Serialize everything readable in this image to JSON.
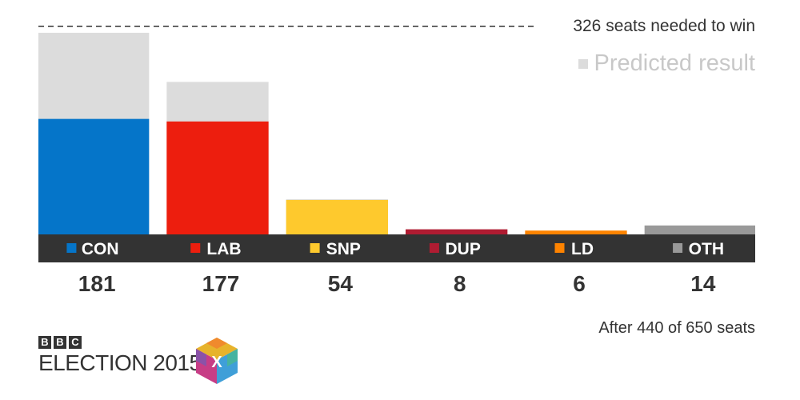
{
  "chart_data": {
    "type": "bar",
    "categories": [
      "CON",
      "LAB",
      "SNP",
      "DUP",
      "LD",
      "OTH"
    ],
    "series": [
      {
        "name": "",
        "values": [
          181,
          177,
          54,
          8,
          6,
          14
        ]
      },
      {
        "name": "Predicted result",
        "values": [
          316,
          239,
          55,
          null,
          null,
          null
        ]
      }
    ],
    "category_colors": [
      "#0575c9",
      "#ed1e0e",
      "#fec92d",
      "#b01c32",
      "#fe8300",
      "#999999"
    ],
    "predicted_color": "#dcdcdc",
    "majority_line": {
      "value": 326,
      "label": "326 seats needed to win"
    },
    "legend": {
      "label": "Predicted result",
      "position": "top-right"
    },
    "ylim": [
      0,
      330
    ],
    "grid": false,
    "footnote": "After 440 of 650 seats"
  },
  "logo": {
    "letters": [
      "B",
      "B",
      "C"
    ],
    "text": "ELECTION 2015",
    "mark": "X"
  },
  "colors": {
    "label_bar": "#333333",
    "text": "#333333",
    "muted_text": "#c8c8c8"
  }
}
